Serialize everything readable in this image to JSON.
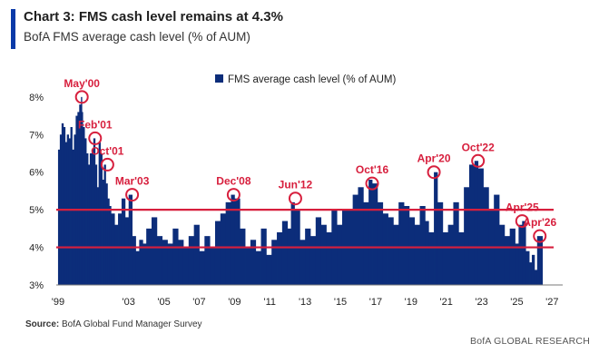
{
  "header": {
    "title": "Chart 3: FMS cash level remains at 4.3%",
    "subtitle": "BofA FMS average cash level (% of AUM)"
  },
  "footer": {
    "source_label": "Source:",
    "source_text": "BofA Global Fund Manager Survey",
    "brand": "BofA GLOBAL RESEARCH"
  },
  "colors": {
    "accent": "#0a3aa8",
    "bars": "#0c2d7a",
    "threshold": "#d71f3d",
    "marker": "#d71f3d",
    "annotation": "#d71f3d"
  },
  "chart_data": {
    "type": "bar",
    "title": "Chart 3: FMS cash level remains at 4.3%",
    "subtitle": "BofA FMS average cash level (% of AUM)",
    "ylim": [
      3,
      8.6
    ],
    "xlim": [
      1998.9,
      2027.6
    ],
    "yticks": [
      3,
      4,
      5,
      6,
      7,
      8
    ],
    "ytick_labels": [
      "3%",
      "4%",
      "5%",
      "6%",
      "7%",
      "8%"
    ],
    "xticks": [
      1999,
      2003,
      2005,
      2007,
      2009,
      2011,
      2013,
      2015,
      2017,
      2019,
      2021,
      2023,
      2025,
      2027
    ],
    "xtick_labels": [
      "'99",
      "'03",
      "'05",
      "'07",
      "'09",
      "'11",
      "'13",
      "'15",
      "'17",
      "'19",
      "'21",
      "'23",
      "'25",
      "'27"
    ],
    "legend": {
      "label": "FMS average cash level (% of AUM)",
      "position": "top"
    },
    "threshold_lines": [
      5.0,
      4.0
    ],
    "series": [
      {
        "name": "FMS average cash level (% of AUM)",
        "x": [
          1999.0,
          1999.1,
          1999.2,
          1999.3,
          1999.4,
          1999.5,
          1999.6,
          1999.7,
          1999.8,
          1999.9,
          2000.0,
          2000.1,
          2000.2,
          2000.3,
          2000.35,
          2000.4,
          2000.5,
          2000.6,
          2000.7,
          2000.8,
          2000.9,
          2001.0,
          2001.1,
          2001.2,
          2001.3,
          2001.4,
          2001.5,
          2001.6,
          2001.7,
          2001.8,
          2001.9,
          2002.0,
          2002.2,
          2002.4,
          2002.6,
          2002.8,
          2003.0,
          2003.2,
          2003.4,
          2003.6,
          2003.8,
          2004.0,
          2004.3,
          2004.6,
          2004.9,
          2005.2,
          2005.5,
          2005.8,
          2006.1,
          2006.4,
          2006.7,
          2007.0,
          2007.3,
          2007.6,
          2007.9,
          2008.2,
          2008.5,
          2008.8,
          2009.0,
          2009.3,
          2009.6,
          2009.9,
          2010.2,
          2010.5,
          2010.8,
          2011.1,
          2011.4,
          2011.7,
          2012.0,
          2012.2,
          2012.4,
          2012.7,
          2013.0,
          2013.3,
          2013.6,
          2013.9,
          2014.2,
          2014.5,
          2014.8,
          2015.1,
          2015.4,
          2015.7,
          2016.0,
          2016.3,
          2016.6,
          2016.8,
          2017.1,
          2017.4,
          2017.7,
          2018.0,
          2018.3,
          2018.6,
          2018.9,
          2019.2,
          2019.5,
          2019.8,
          2020.0,
          2020.3,
          2020.5,
          2020.8,
          2021.1,
          2021.4,
          2021.7,
          2022.0,
          2022.3,
          2022.6,
          2022.8,
          2023.1,
          2023.4,
          2023.7,
          2024.0,
          2024.3,
          2024.6,
          2024.9,
          2025.1,
          2025.3,
          2025.5,
          2025.7,
          2025.85,
          2026.0,
          2026.15,
          2026.3
        ],
        "values": [
          6.6,
          7.0,
          7.3,
          7.2,
          6.8,
          7.0,
          6.9,
          7.2,
          6.6,
          7.0,
          7.5,
          7.6,
          7.8,
          8.0,
          7.6,
          7.2,
          6.9,
          6.5,
          6.2,
          6.5,
          6.6,
          6.9,
          6.2,
          5.6,
          6.8,
          6.5,
          5.8,
          6.2,
          5.7,
          5.3,
          5.1,
          4.9,
          4.6,
          4.9,
          5.3,
          4.8,
          5.4,
          4.3,
          3.9,
          4.2,
          4.1,
          4.5,
          4.8,
          4.3,
          4.2,
          4.1,
          4.5,
          4.2,
          4.0,
          4.3,
          4.6,
          3.9,
          4.3,
          4.0,
          4.7,
          4.9,
          5.2,
          5.4,
          5.3,
          4.5,
          4.0,
          4.2,
          3.9,
          4.5,
          3.8,
          4.2,
          4.4,
          4.7,
          4.5,
          5.2,
          5.0,
          4.2,
          4.5,
          4.3,
          4.8,
          4.6,
          4.4,
          5.0,
          4.6,
          5.0,
          5.0,
          5.4,
          5.6,
          5.2,
          5.8,
          5.7,
          5.2,
          4.9,
          4.8,
          4.6,
          5.2,
          5.1,
          4.8,
          4.6,
          5.1,
          4.7,
          4.4,
          6.0,
          5.2,
          4.4,
          4.6,
          5.2,
          4.4,
          5.6,
          6.2,
          6.3,
          6.1,
          5.6,
          5.0,
          5.4,
          4.6,
          4.3,
          4.5,
          4.1,
          4.6,
          4.7,
          3.9,
          3.6,
          3.8,
          3.4,
          4.3,
          4.3
        ]
      }
    ],
    "annotations": [
      {
        "label": "May'00",
        "x": 2000.35,
        "y": 8.0
      },
      {
        "label": "Feb'01",
        "x": 2001.1,
        "y": 6.9
      },
      {
        "label": "Oct'01",
        "x": 2001.8,
        "y": 6.2
      },
      {
        "label": "Mar'03",
        "x": 2003.2,
        "y": 5.4
      },
      {
        "label": "Dec'08",
        "x": 2008.95,
        "y": 5.4
      },
      {
        "label": "Jun'12",
        "x": 2012.45,
        "y": 5.3
      },
      {
        "label": "Oct'16",
        "x": 2016.8,
        "y": 5.7
      },
      {
        "label": "Apr'20",
        "x": 2020.3,
        "y": 6.0
      },
      {
        "label": "Oct'22",
        "x": 2022.8,
        "y": 6.3
      },
      {
        "label": "Apr'25",
        "x": 2025.3,
        "y": 4.7
      },
      {
        "label": "Apr'26",
        "x": 2026.3,
        "y": 4.3
      }
    ]
  }
}
